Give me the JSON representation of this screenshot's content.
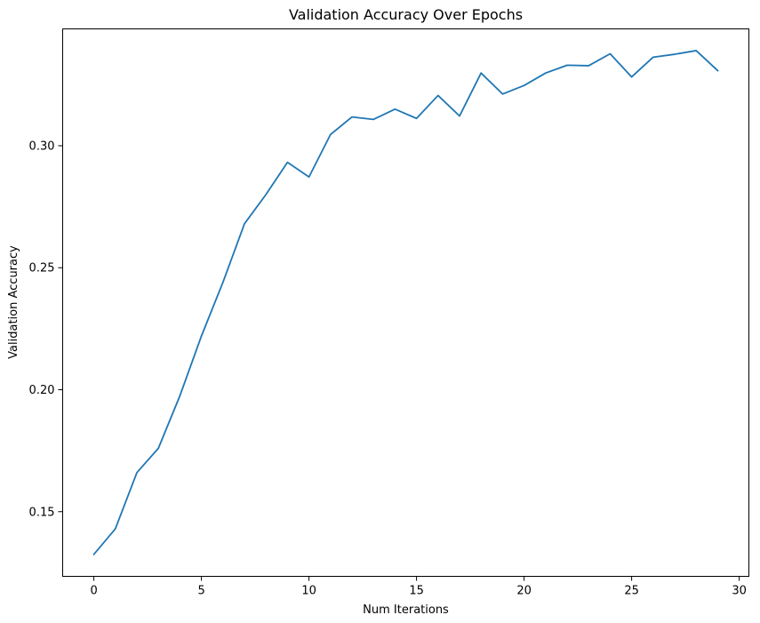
{
  "chart_data": {
    "type": "line",
    "title": "Validation Accuracy Over Epochs",
    "xlabel": "Num Iterations",
    "ylabel": "Validation Accuracy",
    "xlim": [
      -1.45,
      30.45
    ],
    "ylim": [
      0.1235,
      0.3479
    ],
    "x_ticks": [
      0,
      5,
      10,
      15,
      20,
      25,
      30
    ],
    "y_ticks": [
      0.15,
      0.2,
      0.25,
      0.3
    ],
    "y_tick_labels": [
      "0.15",
      "0.20",
      "0.25",
      "0.30"
    ],
    "grid": false,
    "series": [
      {
        "color": "#1f77b4",
        "x": [
          0,
          1,
          2,
          3,
          4,
          5,
          6,
          7,
          8,
          9,
          10,
          11,
          12,
          13,
          14,
          15,
          16,
          17,
          18,
          19,
          20,
          21,
          22,
          23,
          24,
          25,
          26,
          27,
          28,
          29
        ],
        "values": [
          0.1325,
          0.143,
          0.166,
          0.176,
          0.1975,
          0.222,
          0.244,
          0.268,
          0.28,
          0.2932,
          0.2872,
          0.3046,
          0.3118,
          0.3108,
          0.315,
          0.3112,
          0.3206,
          0.3122,
          0.3298,
          0.3212,
          0.3247,
          0.3298,
          0.333,
          0.3328,
          0.3377,
          0.3282,
          0.3363,
          0.3375,
          0.339,
          0.3308
        ]
      }
    ]
  }
}
